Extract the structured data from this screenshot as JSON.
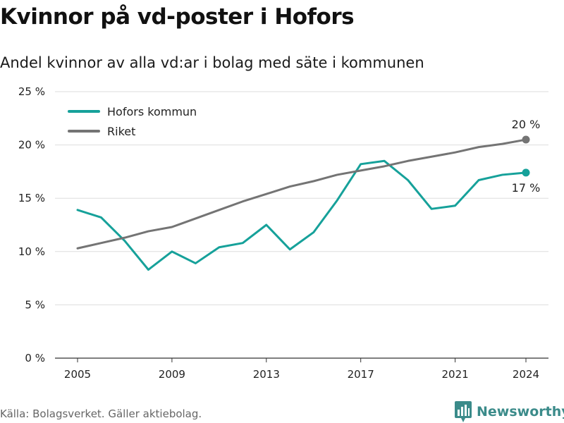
{
  "title": "Kvinnor på vd-poster i Hofors",
  "subtitle": "Andel kvinnor av alla vd:ar i bolag med säte i kommunen",
  "source": "Källa: Bolagsverket. Gäller aktiebolag.",
  "brand": {
    "name": "Newsworthy",
    "icon": "bar-chart-logo-icon"
  },
  "colors": {
    "hofors": "#16a19a",
    "riket": "#747474",
    "grid": "#dddddd",
    "brand": "#3b8b8a"
  },
  "chart_data": {
    "type": "line",
    "title": "Kvinnor på vd-poster i Hofors",
    "subtitle": "Andel kvinnor av alla vd:ar i bolag med säte i kommunen",
    "x": [
      2005,
      2006,
      2007,
      2008,
      2009,
      2010,
      2011,
      2012,
      2013,
      2014,
      2015,
      2016,
      2017,
      2018,
      2019,
      2020,
      2021,
      2022,
      2023,
      2024
    ],
    "series": [
      {
        "name": "Hofors kommun",
        "color": "#16a19a",
        "values": [
          13.9,
          13.2,
          11.0,
          8.3,
          10.0,
          8.9,
          10.4,
          10.8,
          12.5,
          10.2,
          11.8,
          14.8,
          18.2,
          18.5,
          16.7,
          14.0,
          14.3,
          16.7,
          17.2,
          17.4
        ],
        "end_label": "17 %"
      },
      {
        "name": "Riket",
        "color": "#747474",
        "values": [
          10.3,
          10.8,
          11.3,
          11.9,
          12.3,
          13.1,
          13.9,
          14.7,
          15.4,
          16.1,
          16.6,
          17.2,
          17.6,
          18.0,
          18.5,
          18.9,
          19.3,
          19.8,
          20.1,
          20.5
        ],
        "end_label": "20 %"
      }
    ],
    "x_ticks": [
      "2005",
      "2009",
      "2013",
      "2017",
      "2021",
      "2024"
    ],
    "y_ticks": [
      "0 %",
      "5 %",
      "10 %",
      "15 %",
      "20 %",
      "25 %"
    ],
    "xlim": [
      2005,
      2024
    ],
    "ylim": [
      0,
      25
    ],
    "grid": true,
    "legend": "top-left"
  }
}
